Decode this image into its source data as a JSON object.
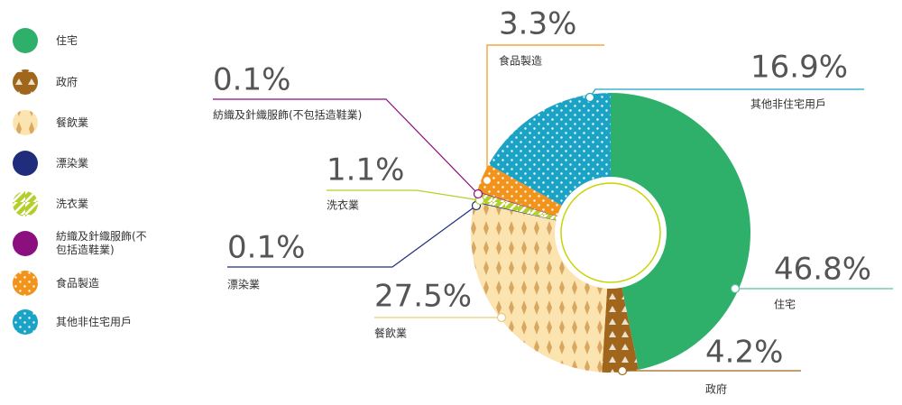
{
  "chart_data": {
    "type": "donut",
    "categories": [
      "住宅",
      "政府",
      "餐飲業",
      "漂染業",
      "洗衣業",
      "紡織及針織服飾(不包括造鞋業)",
      "食品製造",
      "其他非住宅用戶"
    ],
    "values": [
      46.8,
      4.2,
      27.5,
      0.1,
      1.1,
      0.1,
      3.3,
      16.9
    ],
    "value_labels": [
      "46.8%",
      "4.2%",
      "27.5%",
      "0.1%",
      "1.1%",
      "0.1%",
      "3.3%",
      "16.9%"
    ],
    "colors": [
      "#2eaf6a",
      "#a0661c",
      "#fbe4b0",
      "#1f2d7c",
      "#b5cf2a",
      "#8b0f7e",
      "#f2941c",
      "#1aa3c4"
    ]
  }
}
